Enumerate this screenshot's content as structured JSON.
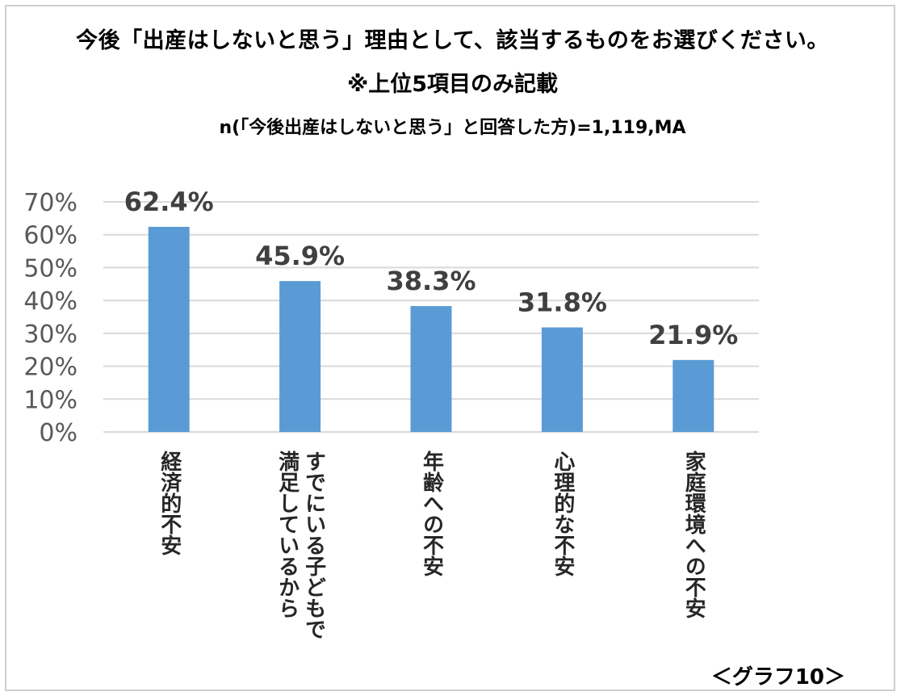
{
  "title_line1": "今後「出産はしないと思う」理由として、該当するものをお選びください。",
  "title_line2": "※上位5項目のみ記載",
  "subtitle": "n(「今後出産はしないと思う」と回答した方)=1,119,MA",
  "caption": "＜グラフ10＞",
  "chart_data": {
    "type": "bar",
    "categories": [
      "経済的不安",
      "すでにいる子どもで満足しているから",
      "年齢への不安",
      "心理的な不安",
      "家庭環境への不安"
    ],
    "category_columns": [
      [
        "経済的不安"
      ],
      [
        "すでにいる子どもで",
        "満足しているから"
      ],
      [
        "年齢への不安"
      ],
      [
        "心理的な不安"
      ],
      [
        "家庭環境への不安"
      ]
    ],
    "values": [
      62.4,
      45.9,
      38.3,
      31.8,
      21.9
    ],
    "data_labels": [
      "62.4%",
      "45.9%",
      "38.3%",
      "31.8%",
      "21.9%"
    ],
    "ylim": [
      0,
      70
    ],
    "yticks": [
      0,
      10,
      20,
      30,
      40,
      50,
      60,
      70
    ],
    "ytick_labels": [
      "0%",
      "10%",
      "20%",
      "30%",
      "40%",
      "50%",
      "60%",
      "70%"
    ],
    "grid": true,
    "bar_color": "#5b9bd5",
    "grid_color": "#d9d9d9"
  }
}
